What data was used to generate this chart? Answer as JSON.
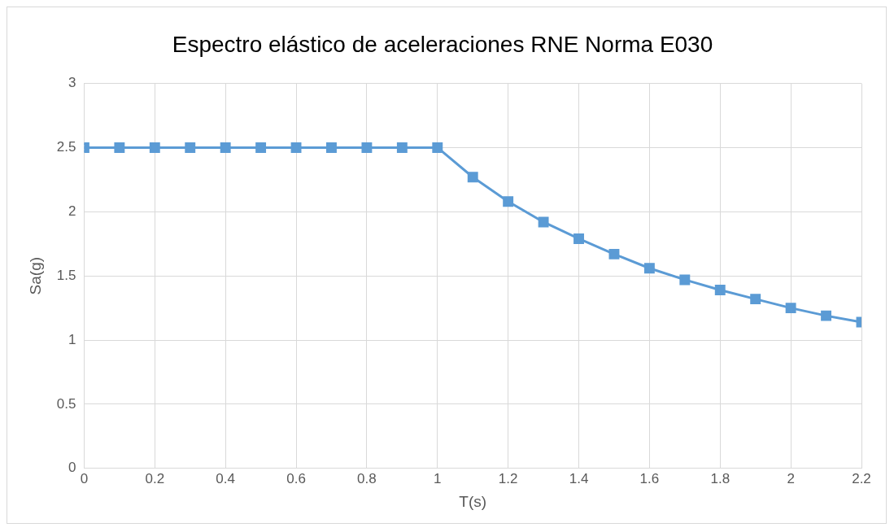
{
  "chart_data": {
    "type": "line",
    "title": "Espectro elástico de aceleraciones RNE Norma E030",
    "xlabel": "T(s)",
    "ylabel": "Sa(g)",
    "x": [
      0,
      0.1,
      0.2,
      0.3,
      0.4,
      0.5,
      0.6,
      0.7,
      0.8,
      0.9,
      1.0,
      1.1,
      1.2,
      1.3,
      1.4,
      1.5,
      1.6,
      1.7,
      1.8,
      1.9,
      2.0,
      2.1,
      2.2
    ],
    "series": [
      {
        "color": "#5b9bd5",
        "values": [
          2.5,
          2.5,
          2.5,
          2.5,
          2.5,
          2.5,
          2.5,
          2.5,
          2.5,
          2.5,
          2.5,
          2.27,
          2.08,
          1.92,
          1.79,
          1.67,
          1.56,
          1.47,
          1.39,
          1.32,
          1.25,
          1.19,
          1.14
        ]
      }
    ],
    "xlim": [
      0,
      2.2
    ],
    "xticks": [
      0,
      0.2,
      0.4,
      0.6,
      0.8,
      1,
      1.2,
      1.4,
      1.6,
      1.8,
      2,
      2.2
    ],
    "ylim": [
      0,
      3
    ],
    "yticks": [
      0,
      0.5,
      1,
      1.5,
      2,
      2.5,
      3
    ],
    "grid": true,
    "legend": false,
    "marker": "square",
    "line_style": "solid"
  }
}
